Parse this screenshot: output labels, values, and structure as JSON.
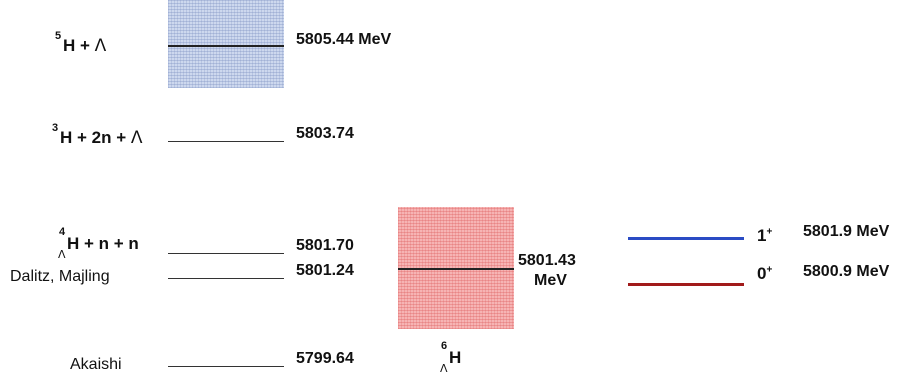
{
  "levels": [
    {
      "label_sup": "5",
      "label_main": "H + ",
      "label_lambda": "Λ",
      "value": "5805.44 MeV"
    },
    {
      "label_sup": "3",
      "label_main": "H + 2n + ",
      "label_lambda": "Λ",
      "value": "5803.74"
    },
    {
      "label_sup": "4",
      "label_sub": "Λ",
      "label_main": "H + n + n",
      "value": "5801.70"
    },
    {
      "label_main": "Dalitz, Majling",
      "value": "5801.24"
    },
    {
      "label_main": "Akaishi",
      "value": "5799.64"
    }
  ],
  "measured": {
    "value_line1": "5801.43",
    "value_line2": "MeV",
    "nucleus_sup": "6",
    "nucleus_sub": "Λ",
    "nucleus_main": "H"
  },
  "states": [
    {
      "spin": "1",
      "parity": "+",
      "value": "5801.9 MeV",
      "color": "#2a4bc4"
    },
    {
      "spin": "0",
      "parity": "+",
      "value": "5800.9 MeV",
      "color": "#a11a1a"
    }
  ]
}
